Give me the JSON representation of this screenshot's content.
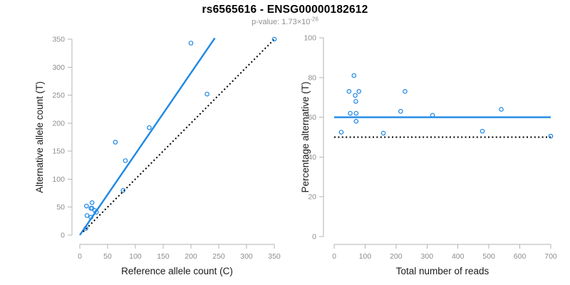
{
  "header": {
    "title": "rs6565616 - ENSG00000182612",
    "subtitle_label": "p-value: ",
    "subtitle_value": "1.73×10",
    "subtitle_exponent": "-26"
  },
  "colors": {
    "accent_blue": "#1E88E5",
    "dotted_black": "#000000",
    "axis_line": "#b3b3b3",
    "tick_text": "#8c8c8c",
    "axis_title_text": "#1a1a1a",
    "subtitle_text": "#8f8f8f",
    "background": "#ffffff"
  },
  "chart_data": [
    {
      "type": "scatter",
      "name": "allele-counts",
      "xlabel": "Reference allele count (C)",
      "ylabel": "Alternative allele count (T)",
      "xlim": [
        0,
        350
      ],
      "ylim": [
        0,
        350
      ],
      "xticks": [
        0,
        50,
        100,
        150,
        200,
        250,
        300,
        350
      ],
      "yticks": [
        0,
        50,
        100,
        150,
        200,
        250,
        300,
        350
      ],
      "grid": false,
      "points": [
        [
          11,
          12
        ],
        [
          13,
          35
        ],
        [
          12,
          52
        ],
        [
          20,
          32
        ],
        [
          20,
          48
        ],
        [
          22,
          48
        ],
        [
          27,
          44
        ],
        [
          30,
          41
        ],
        [
          22,
          58
        ],
        [
          78,
          80
        ],
        [
          82,
          133
        ],
        [
          64,
          166
        ],
        [
          125,
          192
        ],
        [
          229,
          252
        ],
        [
          200,
          343
        ],
        [
          350,
          350
        ]
      ],
      "lines": [
        {
          "style": "solid",
          "color": "blue",
          "from": [
            0,
            0
          ],
          "to": [
            243,
            352
          ],
          "meaning": "regression fit"
        },
        {
          "style": "dotted",
          "color": "black",
          "from": [
            6,
            6
          ],
          "to": [
            351,
            351
          ],
          "meaning": "identity y = x"
        }
      ]
    },
    {
      "type": "scatter",
      "name": "percentage-vs-coverage",
      "xlabel": "Total number of reads",
      "ylabel": "Percentage alternative (T)",
      "xlim": [
        0,
        700
      ],
      "ylim": [
        0,
        100
      ],
      "xticks": [
        0,
        100,
        200,
        300,
        400,
        500,
        600,
        700
      ],
      "yticks": [
        0,
        20,
        40,
        60,
        80,
        100
      ],
      "grid": false,
      "points": [
        [
          23,
          52.5
        ],
        [
          48,
          73
        ],
        [
          52,
          62
        ],
        [
          64,
          81
        ],
        [
          68,
          71
        ],
        [
          70,
          68
        ],
        [
          71,
          62
        ],
        [
          71,
          58
        ],
        [
          80,
          73
        ],
        [
          159,
          52
        ],
        [
          215,
          63
        ],
        [
          229,
          73
        ],
        [
          318,
          61
        ],
        [
          479,
          53
        ],
        [
          540,
          64
        ],
        [
          700,
          50.5
        ]
      ],
      "lines": [
        {
          "style": "solid",
          "color": "blue",
          "from": [
            0,
            60
          ],
          "to": [
            700,
            60
          ],
          "meaning": "mean percentage alternative"
        },
        {
          "style": "dotted",
          "color": "black",
          "from": [
            0,
            50
          ],
          "to": [
            700,
            50
          ],
          "meaning": "50% expectation"
        }
      ]
    }
  ]
}
